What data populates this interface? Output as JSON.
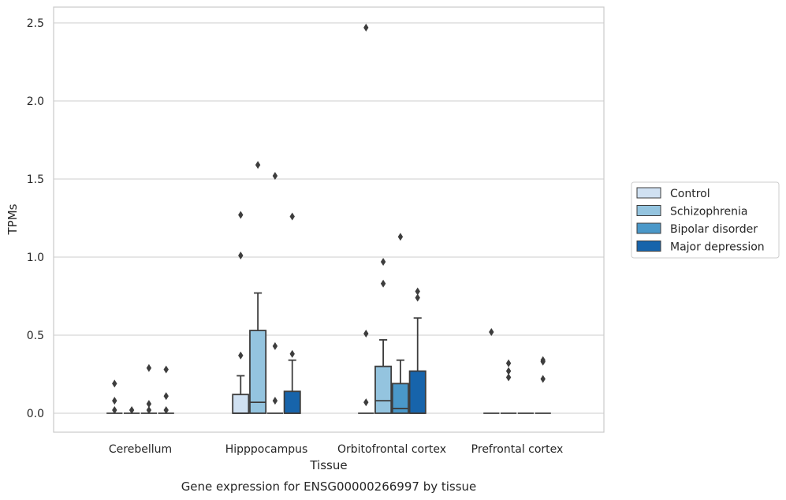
{
  "chart_data": {
    "type": "box",
    "caption": "Gene expression for ENSG00000266997 by tissue",
    "xlabel": "Tissue",
    "ylabel": "TPMs",
    "ylim": [
      -0.12,
      2.6
    ],
    "yticks": [
      0.0,
      0.5,
      1.0,
      1.5,
      2.0,
      2.5
    ],
    "ytick_labels": [
      "0.0",
      "0.5",
      "1.0",
      "1.5",
      "2.0",
      "2.5"
    ],
    "grid": "horizontal",
    "legend_position": "right",
    "categories": [
      "Cerebellum",
      "Hipppocampus",
      "Orbitofrontal cortex",
      "Prefrontal cortex"
    ],
    "series": [
      {
        "name": "Control",
        "color": "#d0e1f2",
        "boxes": [
          {
            "q1": 0,
            "median": 0,
            "q3": 0,
            "whisker_low": 0,
            "whisker_high": 0,
            "outliers": [
              0.19,
              0.08,
              0.02
            ]
          },
          {
            "q1": 0,
            "median": 0.0,
            "q3": 0.12,
            "whisker_low": 0,
            "whisker_high": 0.24,
            "outliers": [
              0.37,
              1.01,
              1.27
            ]
          },
          {
            "q1": 0,
            "median": 0,
            "q3": 0,
            "whisker_low": 0,
            "whisker_high": 0,
            "outliers": [
              0.07,
              0.51,
              2.47
            ]
          },
          {
            "q1": 0,
            "median": 0,
            "q3": 0,
            "whisker_low": 0,
            "whisker_high": 0,
            "outliers": [
              0.52
            ]
          }
        ]
      },
      {
        "name": "Schizophrenia",
        "color": "#94c4df",
        "boxes": [
          {
            "q1": 0,
            "median": 0,
            "q3": 0,
            "whisker_low": 0,
            "whisker_high": 0,
            "outliers": [
              0.02
            ]
          },
          {
            "q1": 0,
            "median": 0.07,
            "q3": 0.53,
            "whisker_low": 0,
            "whisker_high": 0.77,
            "outliers": [
              1.59
            ]
          },
          {
            "q1": 0,
            "median": 0.08,
            "q3": 0.3,
            "whisker_low": 0,
            "whisker_high": 0.47,
            "outliers": [
              0.83,
              0.97
            ]
          },
          {
            "q1": 0,
            "median": 0,
            "q3": 0,
            "whisker_low": 0,
            "whisker_high": 0,
            "outliers": [
              0.23,
              0.27,
              0.32
            ]
          }
        ]
      },
      {
        "name": "Bipolar disorder",
        "color": "#4a98c9",
        "boxes": [
          {
            "q1": 0,
            "median": 0,
            "q3": 0,
            "whisker_low": 0,
            "whisker_high": 0,
            "outliers": [
              0.02,
              0.06,
              0.29
            ]
          },
          {
            "q1": 0,
            "median": 0,
            "q3": 0,
            "whisker_low": 0,
            "whisker_high": 0,
            "outliers": [
              0.08,
              0.43,
              1.52
            ]
          },
          {
            "q1": 0,
            "median": 0.03,
            "q3": 0.19,
            "whisker_low": 0,
            "whisker_high": 0.34,
            "outliers": [
              1.13
            ]
          },
          {
            "q1": 0,
            "median": 0,
            "q3": 0,
            "whisker_low": 0,
            "whisker_high": 0,
            "outliers": []
          }
        ]
      },
      {
        "name": "Major depression",
        "color": "#1764ab",
        "boxes": [
          {
            "q1": 0,
            "median": 0,
            "q3": 0,
            "whisker_low": 0,
            "whisker_high": 0,
            "outliers": [
              0.02,
              0.11,
              0.28
            ]
          },
          {
            "q1": 0,
            "median": 0,
            "q3": 0.14,
            "whisker_low": 0,
            "whisker_high": 0.34,
            "outliers": [
              0.38,
              1.26
            ]
          },
          {
            "q1": 0,
            "median": 0,
            "q3": 0.27,
            "whisker_low": 0,
            "whisker_high": 0.61,
            "outliers": [
              0.74,
              0.78
            ]
          },
          {
            "q1": 0,
            "median": 0,
            "q3": 0,
            "whisker_low": 0,
            "whisker_high": 0,
            "outliers": [
              0.22,
              0.33,
              0.34
            ]
          }
        ]
      }
    ]
  }
}
